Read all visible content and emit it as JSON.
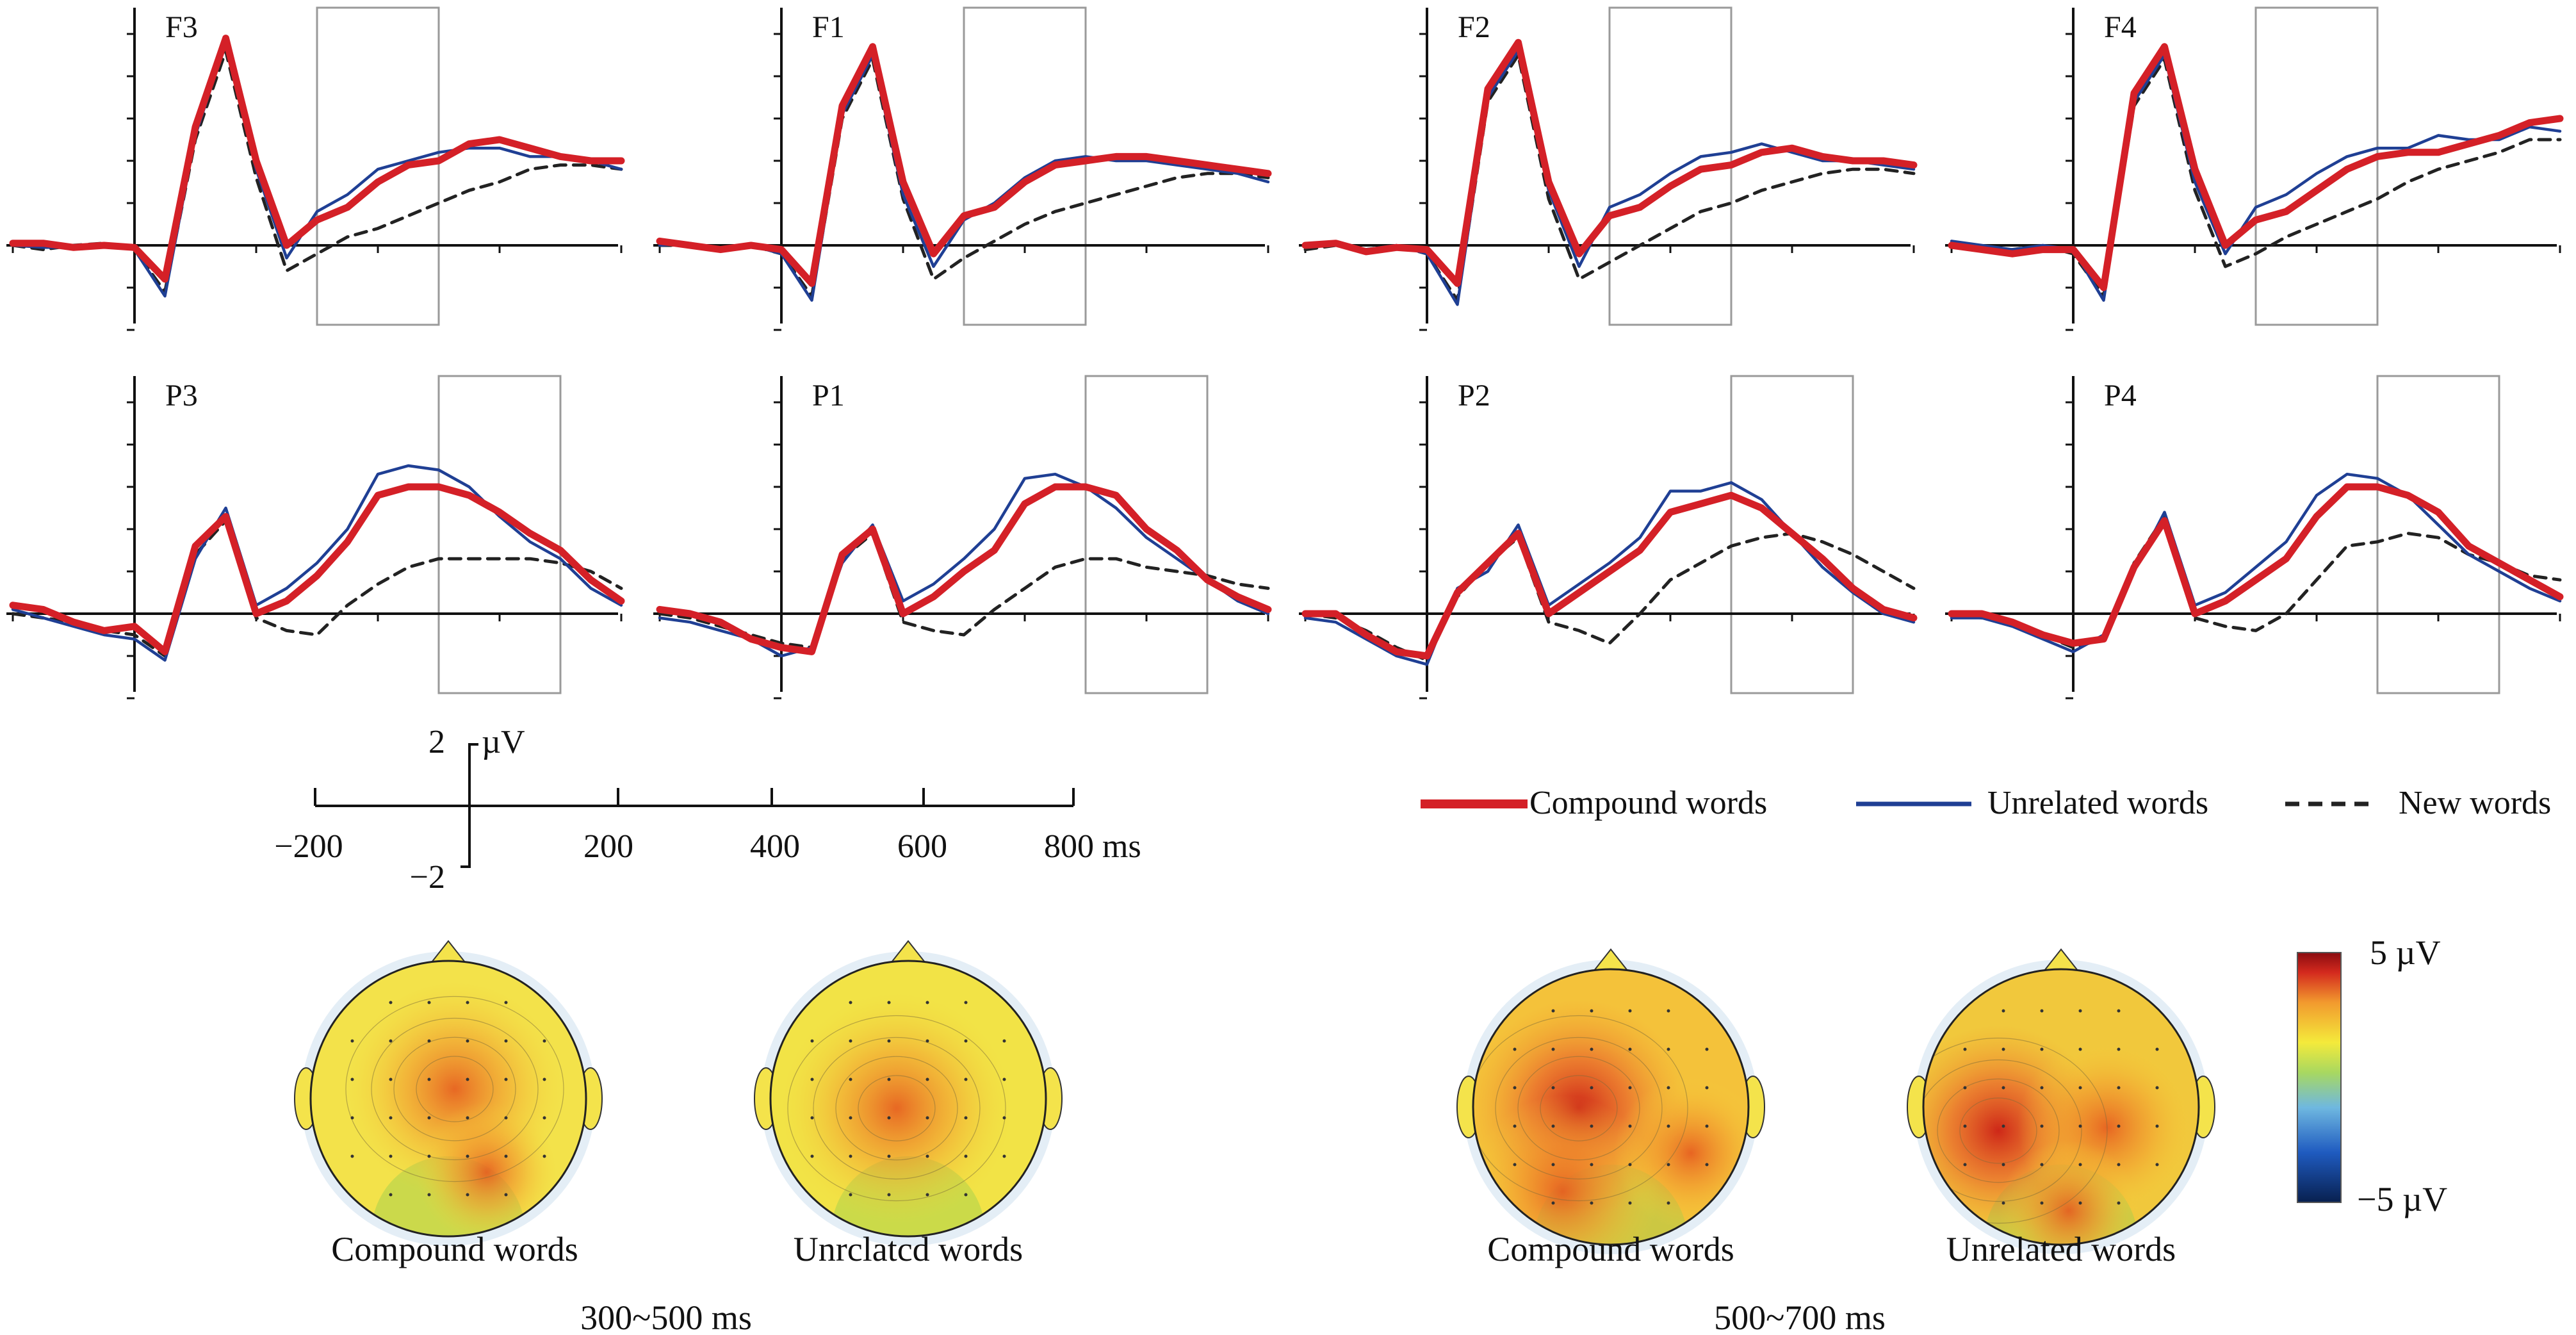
{
  "chart_data": {
    "type": "line",
    "x_unit": "ms",
    "y_unit": "µV",
    "xlim": [
      -200,
      800
    ],
    "ylim": [
      -2,
      5
    ],
    "time_windows": [
      "300~500 ms",
      "500~700 ms"
    ],
    "legend": {
      "placement": "middle-right",
      "entries": [
        {
          "name": "Compound words",
          "color": "#d42027",
          "style": "thick-solid"
        },
        {
          "name": "Unrelated words",
          "color": "#1f3f94",
          "style": "thin-solid"
        },
        {
          "name": "New words",
          "color": "#222222",
          "style": "dashed"
        }
      ]
    },
    "scale_bar": {
      "y_top_label": "2",
      "y_unit_label": "µV",
      "y_bottom_label": "−2",
      "x_ticks": [
        "−200",
        "200",
        "400",
        "600",
        "800 ms"
      ]
    },
    "x": [
      -200,
      -150,
      -100,
      -50,
      0,
      50,
      100,
      150,
      200,
      250,
      300,
      350,
      400,
      450,
      500,
      550,
      600,
      650,
      700,
      750,
      800
    ],
    "panels": [
      {
        "name": "F3",
        "window": [
          300,
          500
        ],
        "series": [
          {
            "name": "Compound words",
            "values": [
              0.05,
              0.05,
              -0.05,
              0.0,
              -0.05,
              -0.8,
              2.8,
              4.9,
              2.0,
              0.0,
              0.6,
              0.9,
              1.5,
              1.9,
              2.0,
              2.4,
              2.5,
              2.3,
              2.1,
              2.0,
              2.0
            ]
          },
          {
            "name": "Unrelated words",
            "values": [
              0.0,
              -0.05,
              -0.05,
              0.0,
              -0.1,
              -1.2,
              2.6,
              4.8,
              1.8,
              -0.3,
              0.8,
              1.2,
              1.8,
              2.0,
              2.2,
              2.3,
              2.3,
              2.1,
              2.1,
              2.0,
              1.8
            ]
          },
          {
            "name": "New words",
            "values": [
              0.0,
              -0.1,
              0.0,
              0.05,
              -0.1,
              -1.1,
              2.5,
              4.6,
              1.6,
              -0.6,
              -0.2,
              0.2,
              0.4,
              0.7,
              1.0,
              1.3,
              1.5,
              1.8,
              1.9,
              1.9,
              1.8
            ]
          }
        ]
      },
      {
        "name": "F1",
        "window": [
          300,
          500
        ],
        "series": [
          {
            "name": "Compound words",
            "values": [
              0.1,
              0.0,
              -0.1,
              0.0,
              -0.1,
              -0.9,
              3.3,
              4.7,
              1.5,
              -0.2,
              0.7,
              0.9,
              1.5,
              1.9,
              2.0,
              2.1,
              2.1,
              2.0,
              1.9,
              1.8,
              1.7
            ]
          },
          {
            "name": "Unrelated words",
            "values": [
              0.0,
              0.05,
              -0.1,
              0.0,
              -0.2,
              -1.3,
              3.1,
              4.5,
              1.2,
              -0.5,
              0.6,
              1.0,
              1.6,
              2.0,
              2.1,
              2.0,
              2.0,
              1.9,
              1.8,
              1.7,
              1.5
            ]
          },
          {
            "name": "New words",
            "values": [
              0.0,
              0.0,
              -0.1,
              0.0,
              -0.2,
              -1.2,
              3.0,
              4.4,
              1.1,
              -0.8,
              -0.3,
              0.1,
              0.5,
              0.8,
              1.0,
              1.2,
              1.4,
              1.6,
              1.7,
              1.7,
              1.6
            ]
          }
        ]
      },
      {
        "name": "F2",
        "window": [
          300,
          500
        ],
        "series": [
          {
            "name": "Compound words",
            "values": [
              0.0,
              0.05,
              -0.15,
              -0.05,
              -0.1,
              -0.9,
              3.7,
              4.8,
              1.5,
              -0.2,
              0.7,
              0.9,
              1.4,
              1.8,
              1.9,
              2.2,
              2.3,
              2.1,
              2.0,
              2.0,
              1.9
            ]
          },
          {
            "name": "Unrelated words",
            "values": [
              0.0,
              0.0,
              -0.1,
              0.0,
              -0.2,
              -1.4,
              3.5,
              4.6,
              1.3,
              -0.5,
              0.9,
              1.2,
              1.7,
              2.1,
              2.2,
              2.4,
              2.2,
              2.0,
              2.0,
              1.9,
              1.8
            ]
          },
          {
            "name": "New words",
            "values": [
              -0.1,
              0.0,
              -0.1,
              0.0,
              -0.2,
              -1.3,
              3.4,
              4.5,
              1.1,
              -0.8,
              -0.4,
              0.0,
              0.4,
              0.8,
              1.0,
              1.3,
              1.5,
              1.7,
              1.8,
              1.8,
              1.7
            ]
          }
        ]
      },
      {
        "name": "F4",
        "window": [
          300,
          500
        ],
        "series": [
          {
            "name": "Compound words",
            "values": [
              0.0,
              -0.1,
              -0.2,
              -0.1,
              -0.1,
              -1.0,
              3.6,
              4.7,
              1.8,
              0.0,
              0.6,
              0.8,
              1.3,
              1.8,
              2.1,
              2.2,
              2.2,
              2.4,
              2.6,
              2.9,
              3.0
            ]
          },
          {
            "name": "Unrelated words",
            "values": [
              0.1,
              0.0,
              -0.1,
              0.0,
              -0.1,
              -1.3,
              3.4,
              4.5,
              1.5,
              -0.2,
              0.9,
              1.2,
              1.7,
              2.1,
              2.3,
              2.3,
              2.6,
              2.5,
              2.5,
              2.8,
              2.7
            ]
          },
          {
            "name": "New words",
            "values": [
              0.0,
              -0.1,
              -0.1,
              0.0,
              -0.2,
              -1.2,
              3.3,
              4.4,
              1.3,
              -0.5,
              -0.2,
              0.2,
              0.5,
              0.8,
              1.1,
              1.5,
              1.8,
              2.0,
              2.2,
              2.5,
              2.5
            ]
          }
        ]
      },
      {
        "name": "P3",
        "window": [
          500,
          700
        ],
        "series": [
          {
            "name": "Compound words",
            "values": [
              0.2,
              0.1,
              -0.2,
              -0.4,
              -0.3,
              -0.9,
              1.6,
              2.3,
              0.0,
              0.3,
              0.9,
              1.7,
              2.8,
              3.0,
              3.0,
              2.8,
              2.4,
              1.9,
              1.5,
              0.8,
              0.3
            ]
          },
          {
            "name": "Unrelated words",
            "values": [
              0.1,
              -0.1,
              -0.3,
              -0.5,
              -0.6,
              -1.1,
              1.3,
              2.5,
              0.2,
              0.6,
              1.2,
              2.0,
              3.3,
              3.5,
              3.4,
              3.0,
              2.3,
              1.7,
              1.3,
              0.6,
              0.2
            ]
          },
          {
            "name": "New words",
            "values": [
              0.0,
              -0.1,
              -0.2,
              -0.4,
              -0.5,
              -1.0,
              1.4,
              2.2,
              -0.1,
              -0.4,
              -0.5,
              0.2,
              0.7,
              1.1,
              1.3,
              1.3,
              1.3,
              1.3,
              1.2,
              1.0,
              0.6
            ]
          }
        ]
      },
      {
        "name": "P1",
        "window": [
          500,
          700
        ],
        "series": [
          {
            "name": "Compound words",
            "values": [
              0.1,
              0.0,
              -0.2,
              -0.6,
              -0.8,
              -0.9,
              1.4,
              2.0,
              0.0,
              0.4,
              1.0,
              1.5,
              2.6,
              3.0,
              3.0,
              2.8,
              2.0,
              1.5,
              0.8,
              0.4,
              0.1
            ]
          },
          {
            "name": "Unrelated words",
            "values": [
              -0.1,
              -0.2,
              -0.4,
              -0.6,
              -1.0,
              -0.8,
              1.2,
              2.1,
              0.3,
              0.7,
              1.3,
              2.0,
              3.2,
              3.3,
              3.0,
              2.5,
              1.8,
              1.3,
              0.8,
              0.3,
              0.0
            ]
          },
          {
            "name": "New words",
            "values": [
              0.0,
              -0.1,
              -0.3,
              -0.5,
              -0.7,
              -0.8,
              1.3,
              1.9,
              -0.2,
              -0.4,
              -0.5,
              0.1,
              0.6,
              1.1,
              1.3,
              1.3,
              1.1,
              1.0,
              0.9,
              0.7,
              0.6
            ]
          }
        ]
      },
      {
        "name": "P2",
        "window": [
          500,
          700
        ],
        "series": [
          {
            "name": "Compound words",
            "values": [
              0.0,
              0.0,
              -0.5,
              -0.9,
              -1.0,
              0.5,
              1.2,
              1.9,
              0.0,
              0.5,
              1.0,
              1.5,
              2.4,
              2.6,
              2.8,
              2.5,
              1.9,
              1.3,
              0.6,
              0.1,
              -0.1
            ]
          },
          {
            "name": "Unrelated words",
            "values": [
              -0.1,
              -0.2,
              -0.6,
              -1.0,
              -1.2,
              0.6,
              1.0,
              2.1,
              0.2,
              0.7,
              1.2,
              1.8,
              2.9,
              2.9,
              3.1,
              2.7,
              1.9,
              1.1,
              0.5,
              0.0,
              -0.2
            ]
          },
          {
            "name": "New words",
            "values": [
              0.0,
              -0.1,
              -0.4,
              -0.8,
              -1.1,
              0.4,
              1.2,
              1.8,
              -0.2,
              -0.4,
              -0.7,
              0.0,
              0.8,
              1.2,
              1.6,
              1.8,
              1.9,
              1.7,
              1.4,
              1.0,
              0.6
            ]
          }
        ]
      },
      {
        "name": "P4",
        "window": [
          500,
          700
        ],
        "series": [
          {
            "name": "Compound words",
            "values": [
              0.0,
              0.0,
              -0.2,
              -0.5,
              -0.7,
              -0.6,
              1.1,
              2.2,
              0.0,
              0.3,
              0.8,
              1.3,
              2.3,
              3.0,
              3.0,
              2.8,
              2.4,
              1.6,
              1.2,
              0.8,
              0.4
            ]
          },
          {
            "name": "Unrelated words",
            "values": [
              -0.1,
              -0.1,
              -0.3,
              -0.6,
              -0.9,
              -0.5,
              1.0,
              2.4,
              0.2,
              0.5,
              1.1,
              1.7,
              2.8,
              3.3,
              3.2,
              2.8,
              2.1,
              1.4,
              1.0,
              0.6,
              0.3
            ]
          },
          {
            "name": "New words",
            "values": [
              0.0,
              -0.1,
              -0.2,
              -0.5,
              -0.8,
              -0.6,
              1.2,
              2.3,
              -0.1,
              -0.3,
              -0.4,
              0.0,
              0.8,
              1.6,
              1.7,
              1.9,
              1.8,
              1.4,
              1.2,
              0.9,
              0.8
            ]
          }
        ]
      }
    ],
    "topomaps": [
      {
        "label": "Compound words",
        "window": "300~500 ms"
      },
      {
        "label": "Unrclatcd words",
        "window": "300~500 ms"
      },
      {
        "label": "Compound words",
        "window": "500~700 ms"
      },
      {
        "label": "Unrelated words",
        "window": "500~700 ms"
      }
    ],
    "colorbar": {
      "max_label": "5 µV",
      "min_label": "−5 µV",
      "range": [
        -5,
        5
      ]
    }
  }
}
